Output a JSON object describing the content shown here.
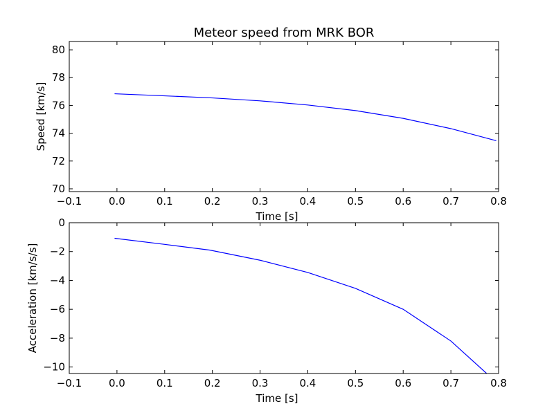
{
  "title": "Meteor speed from  MRK BOR",
  "chart_data": [
    {
      "type": "line",
      "title": "Meteor speed from  MRK BOR",
      "xlabel": "Time [s]",
      "ylabel": "Speed [km/s]",
      "xlim": [
        -0.1,
        0.8
      ],
      "ylim": [
        69.8,
        80.6
      ],
      "xticks": [
        -0.1,
        0.0,
        0.1,
        0.2,
        0.3,
        0.4,
        0.5,
        0.6,
        0.7,
        0.8
      ],
      "xtick_labels": [
        "−0.1",
        "0.0",
        "0.1",
        "0.2",
        "0.3",
        "0.4",
        "0.5",
        "0.6",
        "0.7",
        "0.8"
      ],
      "yticks": [
        70,
        72,
        74,
        76,
        78,
        80
      ],
      "ytick_labels": [
        "70",
        "72",
        "74",
        "76",
        "78",
        "80"
      ],
      "grid": false,
      "color": "#0000ff",
      "series": [
        {
          "x": [
            -0.005,
            0.1,
            0.2,
            0.3,
            0.4,
            0.5,
            0.6,
            0.7,
            0.795
          ],
          "y": [
            76.84,
            76.69,
            76.54,
            76.33,
            76.03,
            75.63,
            75.07,
            74.33,
            73.46
          ]
        }
      ]
    },
    {
      "type": "line",
      "xlabel": "Time [s]",
      "ylabel": "Acceleration [km/s/s]",
      "xlim": [
        -0.1,
        0.8
      ],
      "ylim": [
        -10.45,
        0.0
      ],
      "xticks": [
        -0.1,
        0.0,
        0.1,
        0.2,
        0.3,
        0.4,
        0.5,
        0.6,
        0.7,
        0.8
      ],
      "xtick_labels": [
        "−0.1",
        "0.0",
        "0.1",
        "0.2",
        "0.3",
        "0.4",
        "0.5",
        "0.6",
        "0.7",
        "0.8"
      ],
      "yticks": [
        0,
        -2,
        -4,
        -6,
        -8,
        -10
      ],
      "ytick_labels": [
        "0",
        "−2",
        "−4",
        "−6",
        "−8",
        "−10"
      ],
      "grid": false,
      "color": "#0000ff",
      "series": [
        {
          "x": [
            -0.005,
            0.1,
            0.195,
            0.3,
            0.4,
            0.5,
            0.6,
            0.7,
            0.775
          ],
          "y": [
            -1.08,
            -1.5,
            -1.9,
            -2.6,
            -3.45,
            -4.55,
            -6.0,
            -8.2,
            -10.45
          ]
        }
      ]
    }
  ]
}
